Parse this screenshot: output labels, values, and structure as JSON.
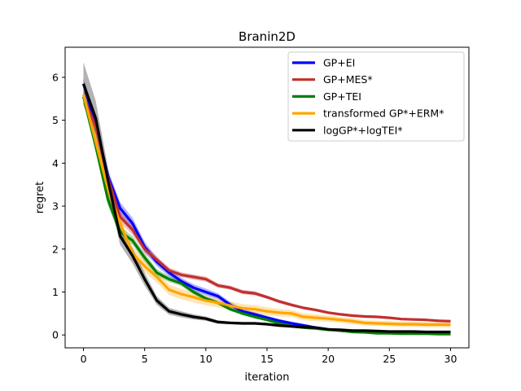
{
  "chart_data": {
    "type": "line",
    "title": "Branin2D",
    "xlabel": "iteration",
    "ylabel": "regret",
    "xlim": [
      -1.5,
      31.5
    ],
    "ylim": [
      -0.3,
      6.7
    ],
    "xticks": [
      0,
      5,
      10,
      15,
      20,
      25,
      30
    ],
    "yticks": [
      0,
      1,
      2,
      3,
      4,
      5,
      6
    ],
    "grid": false,
    "legend_position": "top-right",
    "x": [
      0,
      1,
      2,
      3,
      4,
      5,
      6,
      7,
      8,
      9,
      10,
      11,
      12,
      13,
      14,
      15,
      16,
      17,
      18,
      19,
      20,
      21,
      22,
      23,
      24,
      25,
      26,
      27,
      28,
      29,
      30
    ],
    "series": [
      {
        "name": "GP+EI",
        "color": "#0000ff",
        "values": [
          5.85,
          4.9,
          3.7,
          2.95,
          2.6,
          2.05,
          1.7,
          1.45,
          1.25,
          1.1,
          1.0,
          0.9,
          0.7,
          0.55,
          0.48,
          0.4,
          0.33,
          0.27,
          0.22,
          0.17,
          0.13,
          0.1,
          0.08,
          0.07,
          0.06,
          0.06,
          0.05,
          0.05,
          0.05,
          0.05,
          0.04
        ],
        "band": [
          0.12,
          0.15,
          0.14,
          0.14,
          0.13,
          0.12,
          0.1,
          0.09,
          0.08,
          0.08,
          0.08,
          0.07,
          0.07,
          0.06,
          0.05,
          0.05,
          0.04,
          0.04,
          0.04,
          0.03,
          0.03,
          0.03,
          0.02,
          0.02,
          0.02,
          0.02,
          0.02,
          0.02,
          0.02,
          0.02,
          0.02
        ]
      },
      {
        "name": "GP+MES*",
        "color": "#c0302f",
        "values": [
          5.55,
          4.85,
          3.65,
          2.75,
          2.45,
          2.0,
          1.75,
          1.5,
          1.4,
          1.35,
          1.3,
          1.15,
          1.1,
          1.0,
          0.97,
          0.88,
          0.78,
          0.7,
          0.63,
          0.58,
          0.52,
          0.48,
          0.45,
          0.43,
          0.42,
          0.4,
          0.37,
          0.36,
          0.35,
          0.33,
          0.32
        ],
        "band": [
          0.15,
          0.15,
          0.13,
          0.12,
          0.12,
          0.1,
          0.08,
          0.07,
          0.06,
          0.06,
          0.06,
          0.05,
          0.05,
          0.05,
          0.05,
          0.04,
          0.04,
          0.04,
          0.03,
          0.03,
          0.03,
          0.03,
          0.03,
          0.03,
          0.03,
          0.03,
          0.03,
          0.03,
          0.03,
          0.03,
          0.03
        ]
      },
      {
        "name": "GP+TEI",
        "color": "#008000",
        "values": [
          5.55,
          4.4,
          3.15,
          2.4,
          2.2,
          1.8,
          1.45,
          1.3,
          1.2,
          1.0,
          0.85,
          0.75,
          0.6,
          0.5,
          0.42,
          0.35,
          0.27,
          0.2,
          0.17,
          0.15,
          0.12,
          0.1,
          0.07,
          0.06,
          0.04,
          0.04,
          0.03,
          0.03,
          0.03,
          0.02,
          0.02
        ],
        "band": [
          0.15,
          0.15,
          0.13,
          0.12,
          0.1,
          0.1,
          0.08,
          0.07,
          0.06,
          0.06,
          0.05,
          0.05,
          0.04,
          0.04,
          0.04,
          0.03,
          0.03,
          0.03,
          0.02,
          0.02,
          0.02,
          0.02,
          0.02,
          0.02,
          0.02,
          0.02,
          0.02,
          0.02,
          0.02,
          0.02,
          0.02
        ]
      },
      {
        "name": "transformed GP*+ERM*",
        "color": "#ffa500",
        "values": [
          5.6,
          4.5,
          3.4,
          2.6,
          1.9,
          1.6,
          1.35,
          1.05,
          0.95,
          0.88,
          0.8,
          0.75,
          0.68,
          0.62,
          0.6,
          0.55,
          0.52,
          0.5,
          0.42,
          0.4,
          0.38,
          0.35,
          0.32,
          0.28,
          0.27,
          0.26,
          0.25,
          0.25,
          0.24,
          0.24,
          0.24
        ],
        "band": [
          0.2,
          0.2,
          0.18,
          0.17,
          0.16,
          0.14,
          0.13,
          0.12,
          0.12,
          0.12,
          0.11,
          0.11,
          0.1,
          0.1,
          0.09,
          0.09,
          0.09,
          0.08,
          0.08,
          0.08,
          0.07,
          0.07,
          0.07,
          0.06,
          0.06,
          0.06,
          0.06,
          0.06,
          0.06,
          0.06,
          0.06
        ]
      },
      {
        "name": "logGP*+logTEI*",
        "color": "#000000",
        "values": [
          5.85,
          5.05,
          3.6,
          2.3,
          1.85,
          1.3,
          0.8,
          0.55,
          0.48,
          0.42,
          0.38,
          0.3,
          0.28,
          0.27,
          0.27,
          0.25,
          0.22,
          0.2,
          0.18,
          0.17,
          0.13,
          0.12,
          0.1,
          0.1,
          0.09,
          0.08,
          0.08,
          0.08,
          0.07,
          0.07,
          0.07
        ],
        "band": [
          0.5,
          0.4,
          0.3,
          0.2,
          0.18,
          0.15,
          0.1,
          0.08,
          0.07,
          0.06,
          0.05,
          0.04,
          0.03,
          0.03,
          0.03,
          0.03,
          0.03,
          0.02,
          0.02,
          0.02,
          0.02,
          0.02,
          0.02,
          0.02,
          0.02,
          0.02,
          0.02,
          0.02,
          0.02,
          0.02,
          0.02
        ]
      }
    ]
  }
}
